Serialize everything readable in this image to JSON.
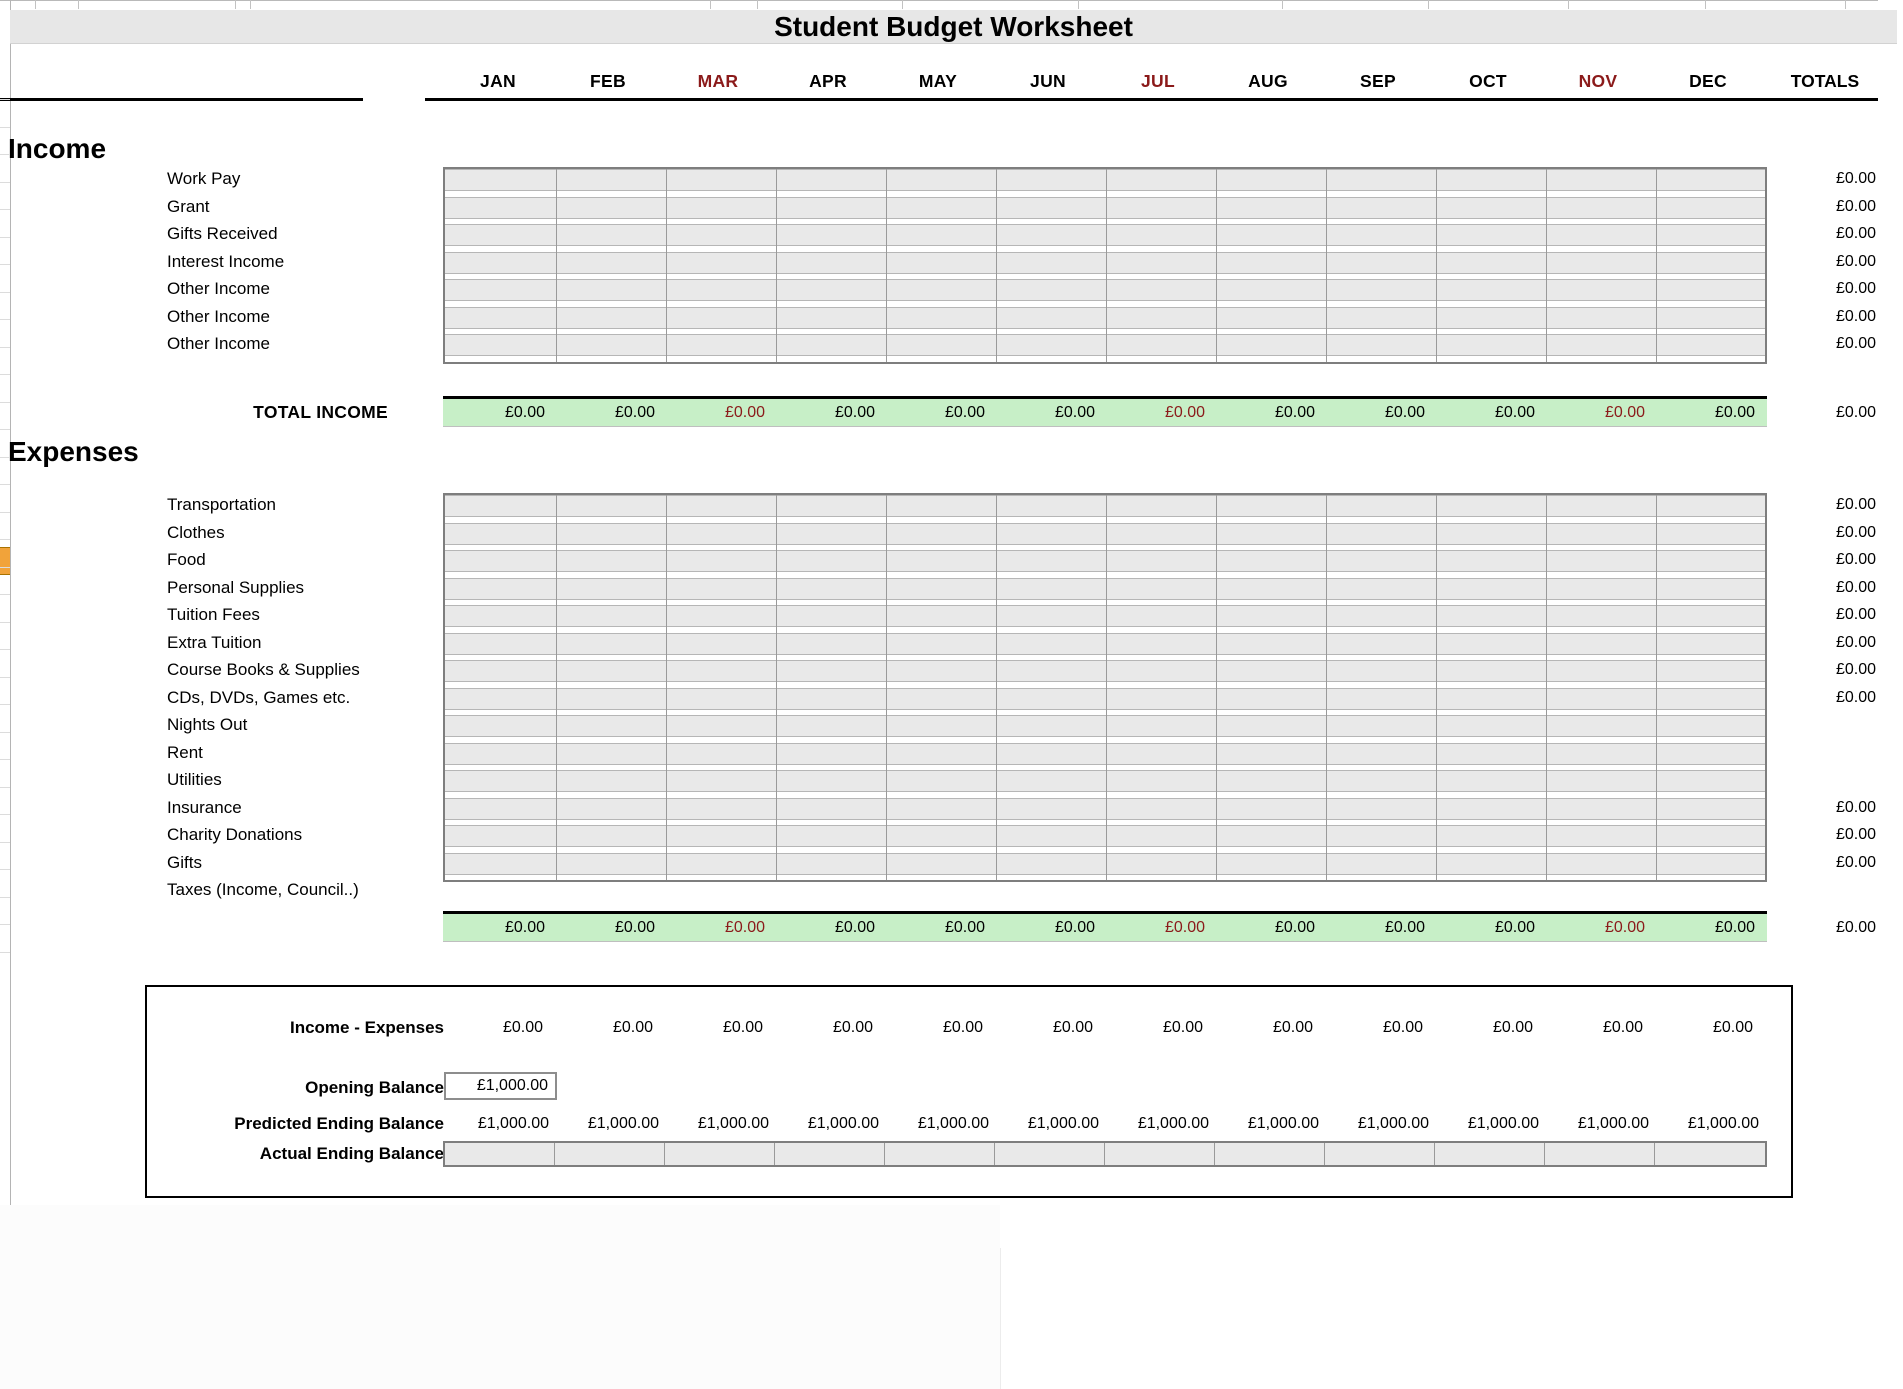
{
  "title": "Student Budget Worksheet",
  "columns": {
    "months": [
      "JAN",
      "FEB",
      "MAR",
      "APR",
      "MAY",
      "JUN",
      "JUL",
      "AUG",
      "SEP",
      "OCT",
      "NOV",
      "DEC"
    ],
    "red_indices": [
      2,
      6,
      10
    ],
    "totals_label": "TOTALS"
  },
  "income": {
    "section_label": "Income",
    "rows": [
      {
        "label": "Work Pay",
        "total": "£0.00"
      },
      {
        "label": "Grant",
        "total": "£0.00"
      },
      {
        "label": "Gifts Received",
        "total": "£0.00"
      },
      {
        "label": "Interest Income",
        "total": "£0.00"
      },
      {
        "label": "Other Income",
        "total": "£0.00"
      },
      {
        "label": "Other Income",
        "total": "£0.00"
      },
      {
        "label": "Other Income",
        "total": "£0.00"
      }
    ],
    "total_row": {
      "label": "TOTAL INCOME",
      "monthly": [
        "£0.00",
        "£0.00",
        "£0.00",
        "£0.00",
        "£0.00",
        "£0.00",
        "£0.00",
        "£0.00",
        "£0.00",
        "£0.00",
        "£0.00",
        "£0.00"
      ],
      "total": "£0.00"
    }
  },
  "expenses": {
    "section_label": "Expenses",
    "rows": [
      {
        "label": "Transportation",
        "total": "£0.00"
      },
      {
        "label": "Clothes",
        "total": "£0.00"
      },
      {
        "label": "Food",
        "total": "£0.00"
      },
      {
        "label": "Personal Supplies",
        "total": "£0.00"
      },
      {
        "label": "Tuition Fees",
        "total": "£0.00"
      },
      {
        "label": "Extra Tuition",
        "total": "£0.00"
      },
      {
        "label": "Course Books & Supplies",
        "total": "£0.00"
      },
      {
        "label": "CDs, DVDs, Games etc.",
        "total": "£0.00"
      },
      {
        "label": "Nights Out",
        "total": ""
      },
      {
        "label": "Rent",
        "total": ""
      },
      {
        "label": "Utilities",
        "total": ""
      },
      {
        "label": "Insurance",
        "total": "£0.00"
      },
      {
        "label": "Charity Donations",
        "total": "£0.00"
      },
      {
        "label": "Gifts",
        "total": "£0.00"
      },
      {
        "label": "Taxes (Income, Council..)",
        "total": "",
        "no_cells": true
      }
    ],
    "total_row": {
      "monthly": [
        "£0.00",
        "£0.00",
        "£0.00",
        "£0.00",
        "£0.00",
        "£0.00",
        "£0.00",
        "£0.00",
        "£0.00",
        "£0.00",
        "£0.00",
        "£0.00"
      ],
      "total": "£0.00"
    }
  },
  "summary": {
    "income_minus_expenses": {
      "label": "Income - Expenses",
      "monthly": [
        "£0.00",
        "£0.00",
        "£0.00",
        "£0.00",
        "£0.00",
        "£0.00",
        "£0.00",
        "£0.00",
        "£0.00",
        "£0.00",
        "£0.00",
        "£0.00"
      ]
    },
    "opening_balance": {
      "label": "Opening Balance",
      "value": "£1,000.00"
    },
    "predicted_ending_balance": {
      "label": "Predicted Ending Balance",
      "monthly": [
        "£1,000.00",
        "£1,000.00",
        "£1,000.00",
        "£1,000.00",
        "£1,000.00",
        "£1,000.00",
        "£1,000.00",
        "£1,000.00",
        "£1,000.00",
        "£1,000.00",
        "£1,000.00",
        "£1,000.00"
      ]
    },
    "actual_ending_balance": {
      "label": "Actual Ending Balance"
    }
  },
  "colors": {
    "red_text": "#8b1a1a",
    "green_band": "#c7efc7",
    "cell_fill": "#e9e9e9",
    "title_band": "#e7e7e7",
    "marker_orange": "#f1a33a"
  }
}
